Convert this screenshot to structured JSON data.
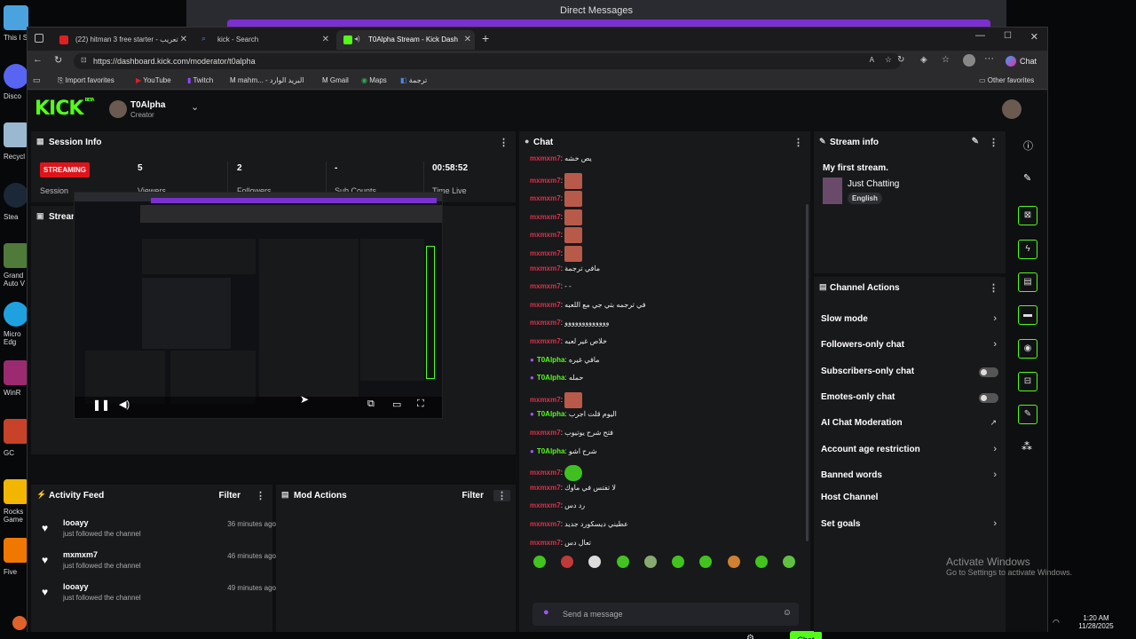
{
  "desktop": {
    "icons": [
      {
        "label": "This PC Shortcut",
        "color": "#4aa3df"
      },
      {
        "label": "Discord",
        "color": "#5865f2"
      },
      {
        "label": "Recycle",
        "color": "#a0c4e0"
      },
      {
        "label": "Steam",
        "color": "#1b2838"
      },
      {
        "label": "Grand Theft Auto V",
        "color": "#3a3a3a"
      },
      {
        "label": "Microsoft Edge",
        "color": "#1fa1e0"
      },
      {
        "label": "WinRAR",
        "color": "#9b2a70"
      },
      {
        "label": "GOG",
        "color": "#8a3fb0"
      },
      {
        "label": "Rockstar Games",
        "color": "#f2b600"
      },
      {
        "label": "Five",
        "color": "#f07800"
      }
    ],
    "icon_labels": [
      "This I Short",
      "Disco",
      "Recycl",
      "Stea",
      "Grand Auto V",
      "Micro Edg",
      "WinR",
      "GC",
      "Rocks Game",
      "Five"
    ],
    "dm_window_title": "Direct Messages",
    "watermark_title": "Activate Windows",
    "watermark_sub": "Go to Settings to activate Windows.",
    "clock_time": "1:20 AM",
    "clock_date": "11/28/2025"
  },
  "browser": {
    "tabs": [
      {
        "label": "(22) hitman 3 free starter - تعريب",
        "active": false,
        "favicon_color": "#e02020"
      },
      {
        "label": "kick - Search",
        "active": false,
        "favicon_color": "#4a8ae0"
      },
      {
        "label": "T0Alpha Stream - Kick Dash",
        "active": true,
        "favicon_color": "#53fc18"
      }
    ],
    "url": "https://dashboard.kick.com/moderator/t0alpha",
    "chat_button": "Chat",
    "bookmarks": [
      "Import favorites",
      "YouTube",
      "Twitch",
      "mahm... - البريد الوارد",
      "Gmail",
      "Maps",
      "ترجمة"
    ],
    "other_favorites": "Other favorites"
  },
  "kick": {
    "logo": "KICK",
    "logo_badge": "BETA",
    "channel_name": "T0Alpha",
    "channel_role": "Creator",
    "session": {
      "title": "Session Info",
      "status_badge": "STREAMING",
      "status_label": "Session",
      "stats": [
        {
          "value": "5",
          "label": "Viewers"
        },
        {
          "value": "2",
          "label": "Followers"
        },
        {
          "value": "-",
          "label": "Sub Counts"
        },
        {
          "value": "00:58:52",
          "label": "Time Live"
        }
      ]
    },
    "preview_title": "Stream Preview",
    "activity": {
      "title": "Activity Feed",
      "filter": "Filter",
      "items": [
        {
          "name": "looayy",
          "action": "just followed the channel",
          "time": "36 minutes ago"
        },
        {
          "name": "mxmxm7",
          "action": "just followed the channel",
          "time": "46 minutes ago"
        },
        {
          "name": "looayy",
          "action": "just followed the channel",
          "time": "49 minutes ago"
        }
      ]
    },
    "mod_actions": {
      "title": "Mod Actions",
      "filter": "Filter"
    },
    "chat": {
      "title": "Chat",
      "messages": [
        {
          "user": "mxmxm7",
          "text": "يص خشه",
          "kind": "text",
          "mod": false
        },
        {
          "user": "mxmxm7",
          "text": "",
          "kind": "emote",
          "mod": false
        },
        {
          "user": "mxmxm7",
          "text": "",
          "kind": "emote",
          "mod": false
        },
        {
          "user": "mxmxm7",
          "text": "",
          "kind": "emote",
          "mod": false
        },
        {
          "user": "mxmxm7",
          "text": "",
          "kind": "emote",
          "mod": false
        },
        {
          "user": "mxmxm7",
          "text": "",
          "kind": "emote",
          "mod": false
        },
        {
          "user": "mxmxm7",
          "text": "مافي ترجمة",
          "kind": "text",
          "mod": false
        },
        {
          "user": "mxmxm7",
          "text": "- -",
          "kind": "text",
          "mod": false
        },
        {
          "user": "mxmxm7",
          "text": "في ترجمه بتي جي مع اللعبه",
          "kind": "text",
          "mod": false
        },
        {
          "user": "mxmxm7",
          "text": "ووووووووووووو",
          "kind": "text",
          "mod": false
        },
        {
          "user": "mxmxm7",
          "text": "خلاص غير لعبه",
          "kind": "text",
          "mod": false
        },
        {
          "user": "T0Alpha",
          "text": "مافي غيره",
          "kind": "text",
          "mod": true
        },
        {
          "user": "T0Alpha",
          "text": "حمله",
          "kind": "text",
          "mod": true
        },
        {
          "user": "mxmxm7",
          "text": "",
          "kind": "emote",
          "mod": false
        },
        {
          "user": "T0Alpha",
          "text": "اليوم قلت اجرب",
          "kind": "text",
          "mod": true
        },
        {
          "user": "mxmxm7",
          "text": "فتح شرح يوتيوب",
          "kind": "text",
          "mod": false
        },
        {
          "user": "T0Alpha",
          "text": "شرح اشو",
          "kind": "text",
          "mod": true
        },
        {
          "user": "mxmxm7",
          "text": "",
          "kind": "emote-green",
          "mod": false
        },
        {
          "user": "mxmxm7",
          "text": "لا تفتس في ماوك",
          "kind": "text",
          "mod": false
        },
        {
          "user": "mxmxm7",
          "text": "رد دس",
          "kind": "text",
          "mod": false
        },
        {
          "user": "mxmxm7",
          "text": "عطيني ديسكورد جديد",
          "kind": "text",
          "mod": false
        },
        {
          "user": "mxmxm7",
          "text": "تعال دس",
          "kind": "text",
          "mod": false
        }
      ],
      "input_placeholder": "Send a message",
      "send_label": "Chat"
    },
    "stream_info": {
      "title": "Stream info",
      "stream_title": "My first stream.",
      "category": "Just Chatting",
      "language": "English"
    },
    "channel_actions": {
      "title": "Channel Actions",
      "items": [
        {
          "label": "Slow mode",
          "control": "chevron"
        },
        {
          "label": "Followers-only chat",
          "control": "chevron"
        },
        {
          "label": "Subscribers-only chat",
          "control": "toggle"
        },
        {
          "label": "Emotes-only chat",
          "control": "toggle"
        },
        {
          "label": "AI Chat Moderation",
          "control": "external"
        },
        {
          "label": "Account age restriction",
          "control": "chevron"
        },
        {
          "label": "Banned words",
          "control": "chevron"
        },
        {
          "label": "Host Channel",
          "control": "none"
        },
        {
          "label": "Set goals",
          "control": "chevron"
        }
      ]
    }
  }
}
